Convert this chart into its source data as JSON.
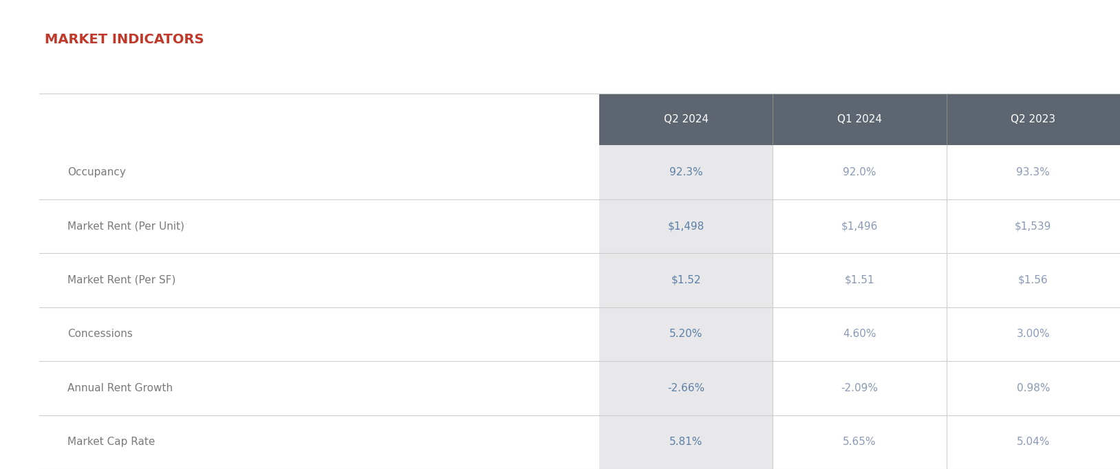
{
  "title": "MARKET INDICATORS",
  "title_color": "#c0392b",
  "title_fontsize": 14,
  "columns": [
    "Q2 2024",
    "Q1 2024",
    "Q2 2023"
  ],
  "rows": [
    "Occupancy",
    "Market Rent (Per Unit)",
    "Market Rent (Per SF)",
    "Concessions",
    "Annual Rent Growth",
    "Market Cap Rate"
  ],
  "values": [
    [
      "92.3%",
      "92.0%",
      "93.3%"
    ],
    [
      "$1,498",
      "$1,496",
      "$1,539"
    ],
    [
      "$1.52",
      "$1.51",
      "$1.56"
    ],
    [
      "5.20%",
      "4.60%",
      "3.00%"
    ],
    [
      "-2.66%",
      "-2.09%",
      "0.98%"
    ],
    [
      "5.81%",
      "5.65%",
      "5.04%"
    ]
  ],
  "header_bg_color": "#5d6670",
  "header_text_color": "#ffffff",
  "col1_bg_color": "#e8e8ea",
  "col1_text_color": "#5b7fa6",
  "other_col_text_color": "#8a9ab5",
  "row_label_color": "#7a7a7a",
  "line_color": "#cccccc",
  "bg_color": "#ffffff",
  "header_fontsize": 11,
  "data_fontsize": 11,
  "label_fontsize": 11,
  "figsize": [
    16.28,
    6.82
  ],
  "dpi": 100
}
